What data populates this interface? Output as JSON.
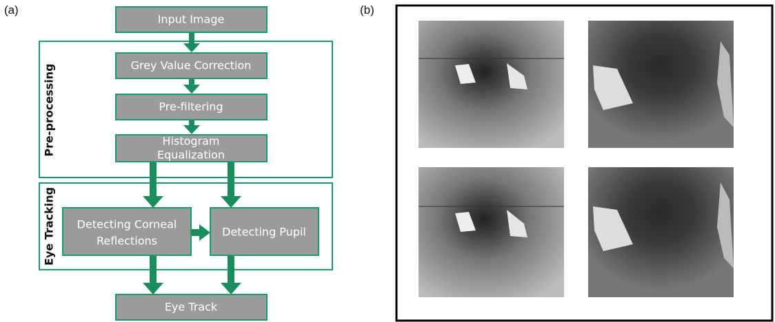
{
  "panel_labels": [
    "(a)",
    "(b)"
  ],
  "nodes": [
    {
      "lines": [
        "Input Image"
      ]
    },
    {
      "lines": [
        "Grey Value Correction"
      ]
    },
    {
      "lines": [
        "Pre-filtering"
      ]
    },
    {
      "lines": [
        "Histogram",
        "Equalization"
      ]
    },
    {
      "lines": [
        "Detecting Corneal",
        "Reflections"
      ]
    },
    {
      "lines": [
        "Detecting Pupil"
      ]
    },
    {
      "lines": [
        "Eye Track"
      ]
    }
  ],
  "groups": [
    {
      "label": "Pre-processing"
    },
    {
      "label": "Eye Tracking"
    }
  ]
}
